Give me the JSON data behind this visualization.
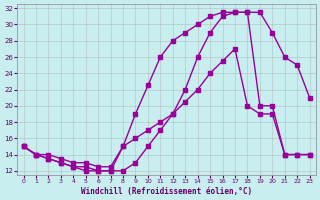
{
  "xlabel": "Windchill (Refroidissement éolien,°C)",
  "xlim": [
    0,
    23
  ],
  "ylim": [
    12,
    32
  ],
  "yticks": [
    12,
    14,
    16,
    18,
    20,
    22,
    24,
    26,
    28,
    30,
    32
  ],
  "xticks": [
    0,
    1,
    2,
    3,
    4,
    5,
    6,
    7,
    8,
    9,
    10,
    11,
    12,
    13,
    14,
    15,
    16,
    17,
    18,
    19,
    20,
    21,
    22,
    23
  ],
  "bg_color": "#c8eef0",
  "line_color": "#990099",
  "grid_color": "#aaaaaa",
  "curve1_x": [
    0,
    1,
    2,
    3,
    4,
    5,
    6,
    7,
    8,
    9,
    10,
    11,
    12,
    13,
    14,
    15,
    16,
    17,
    18,
    19,
    20,
    21,
    22,
    23
  ],
  "curve1_y": [
    15,
    14,
    13.5,
    13,
    12.5,
    12,
    12,
    12,
    12,
    13,
    15,
    17,
    19,
    22,
    26,
    29,
    31,
    31.5,
    31.5,
    31.5,
    29,
    26,
    25,
    21
  ],
  "curve2_x": [
    0,
    1,
    2,
    3,
    4,
    5,
    6,
    7,
    8,
    9,
    10,
    11,
    12,
    13,
    14,
    15,
    16,
    17,
    18,
    19,
    20,
    21,
    22,
    23
  ],
  "curve2_y": [
    15,
    14,
    14,
    13.5,
    13,
    13,
    12.5,
    12.5,
    15,
    19,
    22.5,
    26,
    28,
    29,
    30,
    31,
    31.5,
    31.5,
    31.5,
    20,
    20,
    14,
    14,
    14
  ],
  "curve3_x": [
    0,
    1,
    2,
    3,
    4,
    5,
    6,
    7,
    8,
    9,
    10,
    11,
    12,
    13,
    14,
    15,
    16,
    17,
    18,
    19,
    20,
    21,
    22,
    23
  ],
  "curve3_y": [
    15,
    14,
    13.5,
    13,
    12.5,
    12.5,
    12,
    12,
    15,
    16,
    17,
    18,
    19,
    20.5,
    22,
    24,
    25.5,
    27,
    20,
    19,
    19,
    14,
    14,
    14
  ]
}
